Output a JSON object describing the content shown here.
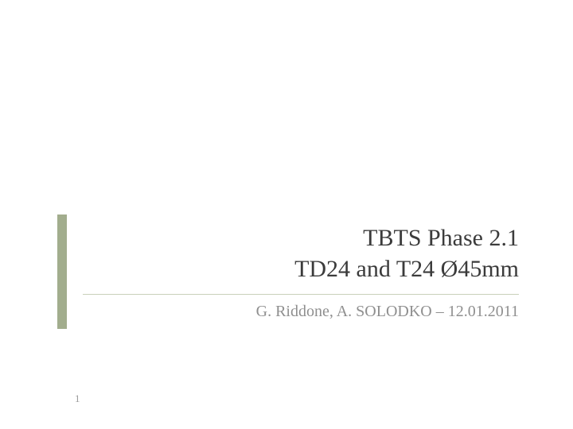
{
  "slide": {
    "title_line1": "TBTS  Phase 2.1",
    "title_line2": "TD24 and T24 Ø45mm",
    "subtitle": "G. Riddone, A. SOLODKO – 12.01.2011",
    "page_number": "1"
  },
  "style": {
    "accent_bar_color": "#a2ad8d",
    "accent_bar_width": 12,
    "divider_color": "#c9d1ba",
    "title_color": "#3b3b3b",
    "title_fontsize": 30,
    "title_fontweight": "normal",
    "subtitle_color": "#8f8f8f",
    "subtitle_fontsize": 20,
    "page_number_color": "#9a9a9a",
    "page_number_fontsize": 13,
    "background_color": "#ffffff"
  }
}
